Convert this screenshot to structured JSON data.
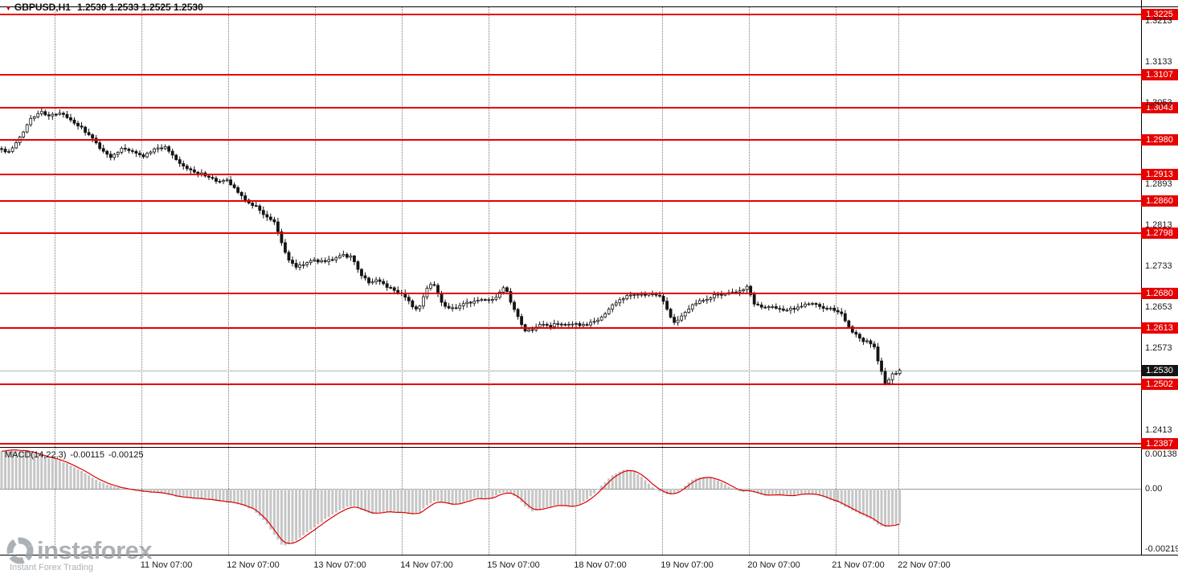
{
  "header": {
    "symbol_period": "GBPUSD,H1",
    "ohlc": "1.2530 1.2533 1.2525 1.2530"
  },
  "indicator": {
    "name": "MACD(14,22,3)",
    "macd_value": "-0.00115",
    "signal_value": "-0.00125"
  },
  "watermark": {
    "brand": "instaforex",
    "tagline": "Instant Forex Trading"
  },
  "colors": {
    "resistance_line": "#e60000",
    "level_label_bg": "#e60000",
    "level_label_text": "#ffffff",
    "current_label_bg": "#141414",
    "candle_color": "#141414",
    "histogram": "#c6c6c6",
    "signal_line": "#dd0000",
    "grid": "#7a7a7a"
  },
  "chart_data": {
    "type": "candlestick",
    "title": "GBPUSD H1 with horizontal support/resistance levels and MACD",
    "symbol": "GBPUSD",
    "timeframe": "H1",
    "current_price": 1.253,
    "current_price_label": "1.2530",
    "price_axis": {
      "ylim": [
        1.238,
        1.3241
      ],
      "gray_labels": [
        {
          "text": "1.3213",
          "price": 1.3213
        },
        {
          "text": "1.3133",
          "price": 1.3133
        },
        {
          "text": "1.3053",
          "price": 1.3053
        },
        {
          "text": "1.2893",
          "price": 1.2893
        },
        {
          "text": "1.2813",
          "price": 1.2813
        },
        {
          "text": "1.2733",
          "price": 1.2733
        },
        {
          "text": "1.2653",
          "price": 1.2653
        },
        {
          "text": "1.2573",
          "price": 1.2573
        },
        {
          "text": "1.2413",
          "price": 1.2413
        }
      ]
    },
    "levels": [
      {
        "text": "1.3225",
        "price": 1.3225
      },
      {
        "text": "1.3107",
        "price": 1.3107
      },
      {
        "text": "1.3043",
        "price": 1.3043
      },
      {
        "text": "1.2980",
        "price": 1.298
      },
      {
        "text": "1.2913",
        "price": 1.2913
      },
      {
        "text": "1.2860",
        "price": 1.286
      },
      {
        "text": "1.2798",
        "price": 1.2798
      },
      {
        "text": "1.2680",
        "price": 1.268
      },
      {
        "text": "1.2613",
        "price": 1.2613
      },
      {
        "text": "1.2502",
        "price": 1.2502
      },
      {
        "text": "1.2387",
        "price": 1.2387
      }
    ],
    "time_labels": [
      "11 Nov 07:00",
      "12 Nov 07:00",
      "13 Nov 07:00",
      "14 Nov 07:00",
      "15 Nov 07:00",
      "18 Nov 07:00",
      "19 Nov 07:00",
      "20 Nov 07:00",
      "21 Nov 07:00",
      "22 Nov 07:00"
    ],
    "close_path": [
      [
        0,
        1.2963
      ],
      [
        12,
        1.2955
      ],
      [
        25,
        1.2985
      ],
      [
        38,
        1.3022
      ],
      [
        50,
        1.3036
      ],
      [
        62,
        1.3025
      ],
      [
        72,
        1.3034
      ],
      [
        85,
        1.3022
      ],
      [
        100,
        1.3005
      ],
      [
        115,
        1.2982
      ],
      [
        128,
        1.2958
      ],
      [
        140,
        1.2946
      ],
      [
        152,
        1.2966
      ],
      [
        165,
        1.2958
      ],
      [
        178,
        1.2948
      ],
      [
        192,
        1.2962
      ],
      [
        205,
        1.2966
      ],
      [
        218,
        1.2942
      ],
      [
        230,
        1.2925
      ],
      [
        245,
        1.2916
      ],
      [
        258,
        1.291
      ],
      [
        270,
        1.2898
      ],
      [
        282,
        1.2902
      ],
      [
        295,
        1.2882
      ],
      [
        307,
        1.2858
      ],
      [
        318,
        1.2852
      ],
      [
        330,
        1.2832
      ],
      [
        342,
        1.2818
      ],
      [
        350,
        1.2782
      ],
      [
        358,
        1.2748
      ],
      [
        368,
        1.2732
      ],
      [
        378,
        1.2738
      ],
      [
        390,
        1.2745
      ],
      [
        402,
        1.2742
      ],
      [
        414,
        1.2748
      ],
      [
        426,
        1.2756
      ],
      [
        438,
        1.275
      ],
      [
        448,
        1.272
      ],
      [
        458,
        1.2702
      ],
      [
        468,
        1.2706
      ],
      [
        480,
        1.2694
      ],
      [
        492,
        1.2685
      ],
      [
        502,
        1.2678
      ],
      [
        510,
        1.2665
      ],
      [
        516,
        1.2645
      ],
      [
        524,
        1.2658
      ],
      [
        532,
        1.2695
      ],
      [
        540,
        1.27
      ],
      [
        550,
        1.2662
      ],
      [
        560,
        1.265
      ],
      [
        572,
        1.2656
      ],
      [
        584,
        1.2662
      ],
      [
        596,
        1.2668
      ],
      [
        608,
        1.2666
      ],
      [
        618,
        1.2672
      ],
      [
        628,
        1.2694
      ],
      [
        636,
        1.266
      ],
      [
        646,
        1.2628
      ],
      [
        654,
        1.2604
      ],
      [
        664,
        1.2612
      ],
      [
        674,
        1.262
      ],
      [
        684,
        1.2616
      ],
      [
        694,
        1.2621
      ],
      [
        704,
        1.2616
      ],
      [
        714,
        1.262
      ],
      [
        724,
        1.2616
      ],
      [
        734,
        1.2621
      ],
      [
        744,
        1.2628
      ],
      [
        754,
        1.2642
      ],
      [
        764,
        1.266
      ],
      [
        774,
        1.267
      ],
      [
        784,
        1.2676
      ],
      [
        794,
        1.268
      ],
      [
        804,
        1.2676
      ],
      [
        814,
        1.268
      ],
      [
        824,
        1.267
      ],
      [
        833,
        1.264
      ],
      [
        840,
        1.2622
      ],
      [
        850,
        1.264
      ],
      [
        860,
        1.2656
      ],
      [
        870,
        1.2666
      ],
      [
        880,
        1.2671
      ],
      [
        890,
        1.2676
      ],
      [
        900,
        1.268
      ],
      [
        910,
        1.2681
      ],
      [
        920,
        1.2686
      ],
      [
        930,
        1.2692
      ],
      [
        938,
        1.2662
      ],
      [
        948,
        1.2652
      ],
      [
        958,
        1.2656
      ],
      [
        968,
        1.265
      ],
      [
        978,
        1.2646
      ],
      [
        988,
        1.2651
      ],
      [
        998,
        1.2656
      ],
      [
        1008,
        1.2661
      ],
      [
        1018,
        1.2656
      ],
      [
        1028,
        1.265
      ],
      [
        1038,
        1.2648
      ],
      [
        1048,
        1.2638
      ],
      [
        1056,
        1.2615
      ],
      [
        1064,
        1.26
      ],
      [
        1072,
        1.2588
      ],
      [
        1080,
        1.2585
      ],
      [
        1088,
        1.2575
      ],
      [
        1094,
        1.254
      ],
      [
        1100,
        1.2512
      ],
      [
        1104,
        1.2498
      ],
      [
        1108,
        1.252
      ],
      [
        1112,
        1.2528
      ],
      [
        1116,
        1.2522
      ],
      [
        1121,
        1.253
      ]
    ],
    "macd": {
      "label": "MACD(14,22,3)",
      "macd_value": -0.00115,
      "signal_value": -0.00125,
      "ylim": [
        -0.00219,
        0.00138
      ],
      "axis_labels": [
        {
          "text": "0.00138",
          "value": 0.00138
        },
        {
          "text": "0.00",
          "value": 0.0
        },
        {
          "text": "-0.00219",
          "value": -0.00219
        }
      ],
      "path": [
        [
          0,
          0.00125
        ],
        [
          15,
          0.00132
        ],
        [
          30,
          0.00128
        ],
        [
          45,
          0.00118
        ],
        [
          60,
          0.00105
        ],
        [
          75,
          0.00095
        ],
        [
          90,
          0.00075
        ],
        [
          105,
          0.00055
        ],
        [
          120,
          0.0003
        ],
        [
          135,
          0.00012
        ],
        [
          150,
          2e-05
        ],
        [
          165,
          -5e-05
        ],
        [
          180,
          -0.0001
        ],
        [
          195,
          -0.00012
        ],
        [
          210,
          -0.0002
        ],
        [
          225,
          -0.0003
        ],
        [
          240,
          -0.00032
        ],
        [
          255,
          -0.00035
        ],
        [
          270,
          -0.0004
        ],
        [
          285,
          -0.00045
        ],
        [
          300,
          -0.00055
        ],
        [
          315,
          -0.0007
        ],
        [
          330,
          -0.0011
        ],
        [
          340,
          -0.0015
        ],
        [
          352,
          -0.00195
        ],
        [
          362,
          -0.00185
        ],
        [
          372,
          -0.00168
        ],
        [
          382,
          -0.00148
        ],
        [
          392,
          -0.00128
        ],
        [
          402,
          -0.00108
        ],
        [
          412,
          -0.0009
        ],
        [
          422,
          -0.00074
        ],
        [
          432,
          -0.0006
        ],
        [
          442,
          -0.0006
        ],
        [
          452,
          -0.00075
        ],
        [
          462,
          -0.00085
        ],
        [
          472,
          -0.0008
        ],
        [
          482,
          -0.00075
        ],
        [
          492,
          -0.0008
        ],
        [
          502,
          -0.0008
        ],
        [
          512,
          -0.00085
        ],
        [
          522,
          -0.0008
        ],
        [
          532,
          -0.00055
        ],
        [
          542,
          -0.0004
        ],
        [
          552,
          -0.00046
        ],
        [
          562,
          -0.00055
        ],
        [
          572,
          -0.0005
        ],
        [
          582,
          -0.0004
        ],
        [
          592,
          -0.0003
        ],
        [
          602,
          -0.00035
        ],
        [
          612,
          -0.0003
        ],
        [
          622,
          -0.00016
        ],
        [
          632,
          -0.0001
        ],
        [
          642,
          -0.00026
        ],
        [
          652,
          -0.00055
        ],
        [
          662,
          -0.00075
        ],
        [
          672,
          -0.0007
        ],
        [
          682,
          -0.0006
        ],
        [
          692,
          -0.00055
        ],
        [
          702,
          -0.00056
        ],
        [
          712,
          -0.0006
        ],
        [
          722,
          -0.0005
        ],
        [
          732,
          -0.00034
        ],
        [
          742,
          -0.0001
        ],
        [
          752,
          0.0002
        ],
        [
          762,
          0.00046
        ],
        [
          772,
          0.0006
        ],
        [
          782,
          0.00065
        ],
        [
          792,
          0.00055
        ],
        [
          802,
          0.0003
        ],
        [
          812,
          5e-05
        ],
        [
          822,
          -0.00012
        ],
        [
          832,
          -0.0002
        ],
        [
          842,
          -0.00014
        ],
        [
          852,
          0.0001
        ],
        [
          862,
          0.0003
        ],
        [
          872,
          0.0004
        ],
        [
          882,
          0.0004
        ],
        [
          892,
          0.0003
        ],
        [
          902,
          0.00015
        ],
        [
          912,
          0.0
        ],
        [
          922,
          -0.0001
        ],
        [
          932,
          -6e-05
        ],
        [
          942,
          -0.00016
        ],
        [
          952,
          -0.00025
        ],
        [
          962,
          -0.0002
        ],
        [
          972,
          -0.00021
        ],
        [
          982,
          -0.00026
        ],
        [
          992,
          -0.0002
        ],
        [
          1002,
          -0.00016
        ],
        [
          1012,
          -0.00016
        ],
        [
          1022,
          -0.00026
        ],
        [
          1032,
          -0.00036
        ],
        [
          1042,
          -0.00046
        ],
        [
          1052,
          -0.0006
        ],
        [
          1062,
          -0.00075
        ],
        [
          1072,
          -0.00088
        ],
        [
          1082,
          -0.001
        ],
        [
          1092,
          -0.00118
        ],
        [
          1100,
          -0.0013
        ],
        [
          1108,
          -0.00126
        ],
        [
          1114,
          -0.0012
        ],
        [
          1121,
          -0.00115
        ]
      ]
    }
  }
}
